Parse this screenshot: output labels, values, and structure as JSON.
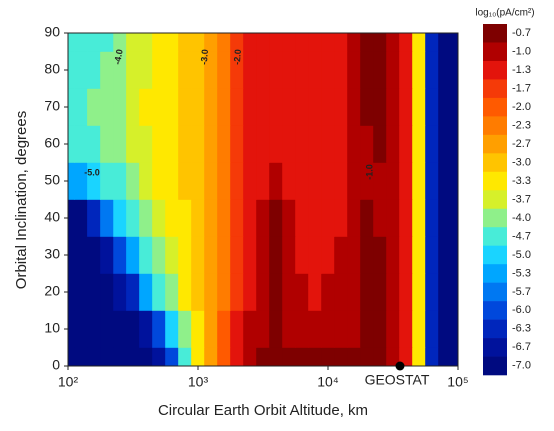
{
  "chart_data": {
    "type": "heatmap",
    "xlabel": "Circular Earth Orbit Altitude, km",
    "ylabel": "Orbital Inclination, degrees",
    "xscale": "log",
    "xlim": [
      100,
      100000
    ],
    "ylim": [
      0,
      90
    ],
    "xticks": [
      {
        "value": 100,
        "label": "10²"
      },
      {
        "value": 1000,
        "label": "10³"
      },
      {
        "value": 10000,
        "label": "10⁴"
      },
      {
        "value": 100000,
        "label": "10⁵"
      }
    ],
    "yticks": [
      0,
      10,
      20,
      30,
      40,
      50,
      60,
      70,
      80,
      90
    ],
    "x": [
      100,
      126,
      158,
      200,
      251,
      316,
      398,
      501,
      631,
      794,
      1000,
      1259,
      1585,
      1995,
      2512,
      3162,
      3981,
      5012,
      6310,
      7943,
      10000,
      12589,
      15849,
      19953,
      25119,
      31623,
      39811,
      50119,
      63096,
      79433,
      100000
    ],
    "y": [
      0,
      10,
      20,
      30,
      40,
      50,
      60,
      70,
      80,
      90
    ],
    "z": [
      [
        -7.0,
        -7.0,
        -7.0,
        -7.0,
        -7.0,
        -7.0,
        -7.0,
        -6.7,
        -6.0,
        -4.7,
        -3.5,
        -2.8,
        -2.0,
        -1.4,
        -1.0,
        -0.8,
        -0.8,
        -0.8,
        -0.8,
        -0.8,
        -0.8,
        -0.8,
        -0.8,
        -0.8,
        -0.8,
        -1.0,
        -1.4,
        -3.5,
        -6.5,
        -7.0,
        -7.0
      ],
      [
        -7.0,
        -7.0,
        -7.0,
        -7.0,
        -7.0,
        -7.0,
        -6.7,
        -6.0,
        -5.0,
        -4.0,
        -3.3,
        -2.7,
        -2.0,
        -1.5,
        -1.1,
        -0.9,
        -0.8,
        -0.9,
        -0.9,
        -0.9,
        -0.9,
        -0.9,
        -0.9,
        -0.8,
        -0.8,
        -1.0,
        -1.4,
        -3.5,
        -6.5,
        -7.0,
        -7.0
      ],
      [
        -7.0,
        -7.0,
        -7.0,
        -7.0,
        -6.7,
        -6.3,
        -5.5,
        -4.7,
        -4.0,
        -3.5,
        -3.1,
        -2.6,
        -2.2,
        -1.7,
        -1.3,
        -1.0,
        -0.8,
        -1.0,
        -1.1,
        -1.2,
        -1.1,
        -1.0,
        -0.9,
        -0.8,
        -0.8,
        -1.1,
        -1.4,
        -3.5,
        -6.5,
        -7.0,
        -7.0
      ],
      [
        -7.0,
        -7.0,
        -7.0,
        -6.7,
        -6.0,
        -5.3,
        -4.7,
        -4.0,
        -3.6,
        -3.3,
        -3.0,
        -2.6,
        -2.2,
        -1.8,
        -1.4,
        -1.1,
        -0.8,
        -1.0,
        -1.2,
        -1.3,
        -1.2,
        -1.1,
        -1.0,
        -0.8,
        -0.8,
        -1.1,
        -1.4,
        -3.5,
        -6.5,
        -7.0,
        -7.0
      ],
      [
        -7.0,
        -7.0,
        -6.5,
        -5.7,
        -5.0,
        -4.5,
        -4.0,
        -3.6,
        -3.4,
        -3.2,
        -3.0,
        -2.6,
        -2.2,
        -1.8,
        -1.4,
        -1.1,
        -0.8,
        -1.1,
        -1.3,
        -1.3,
        -1.2,
        -1.2,
        -1.0,
        -0.8,
        -0.9,
        -1.1,
        -1.4,
        -3.5,
        -6.5,
        -7.0,
        -7.0
      ],
      [
        -5.5,
        -5.2,
        -5.0,
        -4.7,
        -4.4,
        -4.0,
        -3.7,
        -3.5,
        -3.3,
        -3.1,
        -3.0,
        -2.6,
        -2.2,
        -1.8,
        -1.4,
        -1.2,
        -0.9,
        -1.2,
        -1.3,
        -1.3,
        -1.2,
        -1.2,
        -1.0,
        -0.9,
        -0.9,
        -1.1,
        -1.4,
        -3.5,
        -6.5,
        -7.0,
        -7.0
      ],
      [
        -4.7,
        -4.7,
        -4.6,
        -4.3,
        -4.1,
        -3.8,
        -3.6,
        -3.4,
        -3.3,
        -3.1,
        -3.0,
        -2.6,
        -2.2,
        -1.8,
        -1.4,
        -1.3,
        -1.2,
        -1.3,
        -1.3,
        -1.3,
        -1.2,
        -1.2,
        -1.0,
        -0.9,
        -0.8,
        -1.1,
        -1.4,
        -3.5,
        -6.5,
        -7.0,
        -7.0
      ],
      [
        -4.7,
        -4.6,
        -4.2,
        -4.0,
        -3.9,
        -3.7,
        -3.5,
        -3.4,
        -3.3,
        -3.1,
        -3.0,
        -2.6,
        -2.2,
        -1.8,
        -1.4,
        -1.3,
        -1.3,
        -1.3,
        -1.3,
        -1.3,
        -1.2,
        -1.2,
        -0.9,
        -0.8,
        -0.8,
        -1.1,
        -1.4,
        -3.5,
        -6.5,
        -7.0,
        -7.0
      ],
      [
        -4.7,
        -4.7,
        -4.6,
        -4.3,
        -4.0,
        -3.8,
        -3.6,
        -3.4,
        -3.3,
        -3.1,
        -3.0,
        -2.6,
        -2.2,
        -1.8,
        -1.4,
        -1.3,
        -1.3,
        -1.3,
        -1.3,
        -1.3,
        -1.2,
        -1.2,
        -0.9,
        -0.8,
        -0.8,
        -1.1,
        -1.4,
        -3.5,
        -6.5,
        -7.0,
        -7.0
      ],
      [
        -4.7,
        -4.7,
        -4.7,
        -4.5,
        -4.0,
        -3.8,
        -3.6,
        -3.4,
        -3.3,
        -3.1,
        -3.0,
        -2.6,
        -2.2,
        -1.8,
        -1.4,
        -1.3,
        -1.3,
        -1.3,
        -1.3,
        -1.3,
        -1.2,
        -1.2,
        -0.9,
        -0.8,
        -0.8,
        -1.1,
        -1.4,
        -3.5,
        -6.5,
        -7.0,
        -7.0
      ]
    ],
    "colorbar_title": "log₁₀(pA/cm²)",
    "levels": [
      -0.7,
      {
        "value": -1,
        "label": "-1.0"
      },
      -1.3,
      -1.7,
      {
        "value": -2,
        "label": "-2.0"
      },
      -2.3,
      -2.7,
      {
        "value": -3,
        "label": "-3.0"
      },
      -3.3,
      -3.7,
      {
        "value": -4,
        "label": "-4.0"
      },
      -4.7,
      {
        "value": -5,
        "label": "-5.0"
      },
      -5.3,
      -5.7,
      {
        "value": -6,
        "label": "-6.0"
      },
      -6.3,
      -6.7,
      {
        "value": -7,
        "label": "-7.0"
      }
    ],
    "colors": [
      "#7e0000",
      "#b00000",
      "#e3140c",
      "#f53a08",
      "#ff5a00",
      "#ff7c00",
      "#ff9f00",
      "#ffc400",
      "#ffe800",
      "#d6f02a",
      "#8ff08a",
      "#48ecd8",
      "#1ad4ff",
      "#00a6ff",
      "#0078f2",
      "#0048dc",
      "#0026bc",
      "#00129c",
      "#000a80"
    ],
    "annotations": [
      "-4.0",
      "-3.0",
      "-2.0",
      "-5.0",
      "-1.0"
    ],
    "geostat": {
      "label": "GEOSTAT",
      "x": 35786,
      "y": 0
    }
  }
}
